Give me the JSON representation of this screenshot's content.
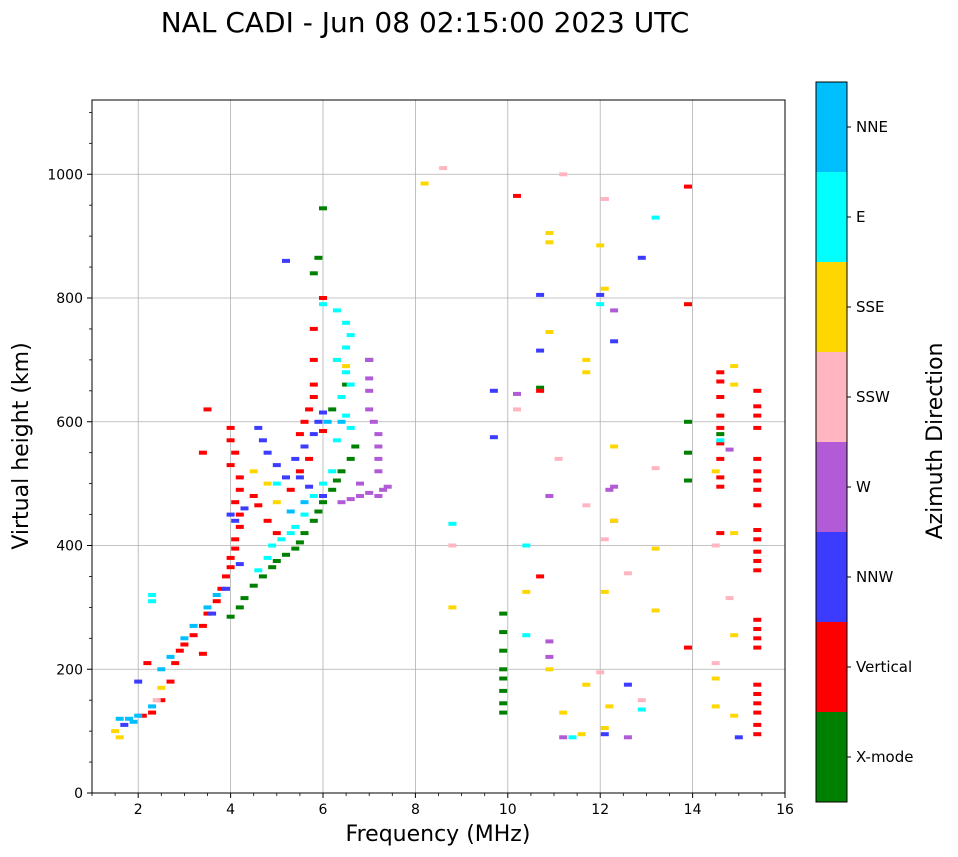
{
  "chart_data": {
    "type": "scatter",
    "title": "NAL CADI - Jun 08 02:15:00 2023 UTC",
    "xlabel": "Frequency (MHz)",
    "ylabel": "Virtual height (km)",
    "xlim": [
      1,
      16
    ],
    "ylim": [
      0,
      1120
    ],
    "x_ticks": [
      2,
      4,
      6,
      8,
      10,
      12,
      14,
      16
    ],
    "y_ticks": [
      0,
      200,
      400,
      600,
      800,
      1000
    ],
    "grid": true,
    "colorbar": {
      "title": "Azimuth Direction",
      "categories": [
        {
          "name": "X-mode",
          "color": "#008000"
        },
        {
          "name": "Vertical",
          "color": "#ff0000"
        },
        {
          "name": "NNW",
          "color": "#3c3cff"
        },
        {
          "name": "W",
          "color": "#b15bd6"
        },
        {
          "name": "SSW",
          "color": "#ffb6c1"
        },
        {
          "name": "SSE",
          "color": "#ffd700"
        },
        {
          "name": "E",
          "color": "#00ffff"
        },
        {
          "name": "NNE",
          "color": "#00bfff"
        }
      ]
    },
    "series": [
      {
        "name": "X-mode",
        "points": [
          [
            4.0,
            285
          ],
          [
            4.2,
            300
          ],
          [
            4.3,
            315
          ],
          [
            4.5,
            335
          ],
          [
            4.7,
            350
          ],
          [
            4.9,
            365
          ],
          [
            5.0,
            375
          ],
          [
            5.2,
            385
          ],
          [
            5.4,
            395
          ],
          [
            5.5,
            405
          ],
          [
            5.6,
            420
          ],
          [
            5.8,
            440
          ],
          [
            5.9,
            455
          ],
          [
            6.0,
            470
          ],
          [
            6.2,
            490
          ],
          [
            6.3,
            505
          ],
          [
            6.4,
            520
          ],
          [
            6.6,
            540
          ],
          [
            6.7,
            560
          ],
          [
            6.2,
            620
          ],
          [
            6.5,
            660
          ],
          [
            7.0,
            700
          ],
          [
            5.9,
            865
          ],
          [
            5.8,
            840
          ],
          [
            6.0,
            945
          ],
          [
            9.9,
            290
          ],
          [
            9.9,
            260
          ],
          [
            9.9,
            230
          ],
          [
            9.9,
            200
          ],
          [
            9.9,
            185
          ],
          [
            9.9,
            165
          ],
          [
            9.9,
            145
          ],
          [
            9.9,
            130
          ],
          [
            10.7,
            655
          ],
          [
            13.9,
            600
          ],
          [
            13.9,
            550
          ],
          [
            13.9,
            505
          ],
          [
            14.6,
            580
          ]
        ]
      },
      {
        "name": "Vertical",
        "points": [
          [
            2.1,
            125
          ],
          [
            2.3,
            130
          ],
          [
            2.5,
            150
          ],
          [
            2.7,
            180
          ],
          [
            2.8,
            210
          ],
          [
            2.9,
            230
          ],
          [
            3.0,
            240
          ],
          [
            3.2,
            255
          ],
          [
            3.4,
            270
          ],
          [
            3.5,
            290
          ],
          [
            3.7,
            310
          ],
          [
            3.8,
            330
          ],
          [
            3.9,
            350
          ],
          [
            4.0,
            365
          ],
          [
            4.0,
            380
          ],
          [
            4.1,
            395
          ],
          [
            4.1,
            410
          ],
          [
            4.2,
            430
          ],
          [
            4.2,
            450
          ],
          [
            4.1,
            470
          ],
          [
            4.2,
            490
          ],
          [
            4.2,
            510
          ],
          [
            4.0,
            530
          ],
          [
            4.1,
            550
          ],
          [
            4.0,
            570
          ],
          [
            4.0,
            590
          ],
          [
            4.5,
            480
          ],
          [
            4.6,
            465
          ],
          [
            4.8,
            440
          ],
          [
            5.0,
            420
          ],
          [
            5.3,
            490
          ],
          [
            5.5,
            520
          ],
          [
            5.7,
            540
          ],
          [
            5.5,
            580
          ],
          [
            5.6,
            600
          ],
          [
            5.7,
            620
          ],
          [
            5.8,
            640
          ],
          [
            5.8,
            660
          ],
          [
            5.8,
            700
          ],
          [
            5.8,
            750
          ],
          [
            6.0,
            800
          ],
          [
            3.4,
            225
          ],
          [
            3.5,
            620
          ],
          [
            3.4,
            550
          ],
          [
            6.0,
            585
          ],
          [
            10.2,
            965
          ],
          [
            10.7,
            650
          ],
          [
            10.7,
            350
          ],
          [
            13.9,
            980
          ],
          [
            13.9,
            790
          ],
          [
            13.9,
            235
          ],
          [
            14.6,
            680
          ],
          [
            14.6,
            665
          ],
          [
            14.6,
            640
          ],
          [
            14.6,
            610
          ],
          [
            14.6,
            590
          ],
          [
            14.6,
            565
          ],
          [
            14.6,
            540
          ],
          [
            14.6,
            510
          ],
          [
            14.6,
            495
          ],
          [
            14.6,
            420
          ],
          [
            15.4,
            650
          ],
          [
            15.4,
            625
          ],
          [
            15.4,
            610
          ],
          [
            15.4,
            590
          ],
          [
            15.4,
            540
          ],
          [
            15.4,
            520
          ],
          [
            15.4,
            505
          ],
          [
            15.4,
            490
          ],
          [
            15.4,
            465
          ],
          [
            15.4,
            425
          ],
          [
            15.4,
            410
          ],
          [
            15.4,
            390
          ],
          [
            15.4,
            375
          ],
          [
            15.4,
            360
          ],
          [
            15.4,
            280
          ],
          [
            15.4,
            265
          ],
          [
            15.4,
            250
          ],
          [
            15.4,
            235
          ],
          [
            15.4,
            175
          ],
          [
            15.4,
            160
          ],
          [
            15.4,
            145
          ],
          [
            15.4,
            130
          ],
          [
            15.4,
            110
          ],
          [
            15.4,
            95
          ],
          [
            2.2,
            210
          ]
        ]
      },
      {
        "name": "NNW",
        "points": [
          [
            4.0,
            450
          ],
          [
            4.1,
            440
          ],
          [
            4.3,
            460
          ],
          [
            4.6,
            590
          ],
          [
            4.7,
            570
          ],
          [
            4.8,
            550
          ],
          [
            5.0,
            530
          ],
          [
            5.2,
            510
          ],
          [
            5.4,
            540
          ],
          [
            5.6,
            560
          ],
          [
            5.8,
            580
          ],
          [
            5.9,
            600
          ],
          [
            6.0,
            615
          ],
          [
            5.5,
            510
          ],
          [
            5.7,
            495
          ],
          [
            6.0,
            480
          ],
          [
            3.9,
            330
          ],
          [
            4.2,
            370
          ],
          [
            3.6,
            290
          ],
          [
            5.2,
            860
          ],
          [
            9.7,
            650
          ],
          [
            9.7,
            575
          ],
          [
            10.7,
            805
          ],
          [
            10.7,
            715
          ],
          [
            12.0,
            805
          ],
          [
            12.3,
            730
          ],
          [
            12.9,
            865
          ],
          [
            12.6,
            175
          ],
          [
            12.1,
            95
          ],
          [
            15.0,
            90
          ],
          [
            2.0,
            180
          ],
          [
            1.7,
            110
          ]
        ]
      },
      {
        "name": "W",
        "points": [
          [
            6.4,
            470
          ],
          [
            6.6,
            475
          ],
          [
            6.8,
            480
          ],
          [
            7.0,
            485
          ],
          [
            7.2,
            480
          ],
          [
            7.3,
            490
          ],
          [
            7.4,
            495
          ],
          [
            7.2,
            520
          ],
          [
            7.2,
            540
          ],
          [
            7.2,
            560
          ],
          [
            7.2,
            580
          ],
          [
            7.1,
            600
          ],
          [
            7.0,
            620
          ],
          [
            7.0,
            650
          ],
          [
            7.0,
            670
          ],
          [
            7.0,
            700
          ],
          [
            6.8,
            500
          ],
          [
            10.2,
            645
          ],
          [
            10.9,
            480
          ],
          [
            10.9,
            245
          ],
          [
            10.9,
            220
          ],
          [
            11.2,
            90
          ],
          [
            12.3,
            440
          ],
          [
            12.3,
            495
          ],
          [
            12.3,
            780
          ],
          [
            12.6,
            90
          ],
          [
            14.8,
            555
          ],
          [
            12.2,
            490
          ]
        ]
      },
      {
        "name": "SSW",
        "points": [
          [
            8.6,
            1010
          ],
          [
            11.2,
            1000
          ],
          [
            12.1,
            960
          ],
          [
            12.1,
            960
          ],
          [
            11.1,
            540
          ],
          [
            11.7,
            465
          ],
          [
            12.1,
            410
          ],
          [
            12.6,
            355
          ],
          [
            12.9,
            150
          ],
          [
            13.2,
            525
          ],
          [
            14.5,
            400
          ],
          [
            14.5,
            210
          ],
          [
            14.8,
            315
          ],
          [
            12.0,
            195
          ],
          [
            8.8,
            400
          ],
          [
            10.2,
            620
          ],
          [
            2.4,
            150
          ]
        ]
      },
      {
        "name": "SSE",
        "points": [
          [
            8.2,
            985
          ],
          [
            10.9,
            905
          ],
          [
            10.9,
            890
          ],
          [
            12.0,
            885
          ],
          [
            12.1,
            815
          ],
          [
            12.3,
            560
          ],
          [
            12.3,
            440
          ],
          [
            12.1,
            325
          ],
          [
            13.2,
            395
          ],
          [
            13.2,
            295
          ],
          [
            8.8,
            300
          ],
          [
            10.4,
            325
          ],
          [
            10.9,
            200
          ],
          [
            11.7,
            175
          ],
          [
            11.2,
            130
          ],
          [
            11.6,
            95
          ],
          [
            12.1,
            105
          ],
          [
            12.2,
            140
          ],
          [
            14.9,
            690
          ],
          [
            14.9,
            660
          ],
          [
            14.5,
            520
          ],
          [
            14.5,
            185
          ],
          [
            14.5,
            140
          ],
          [
            14.9,
            125
          ],
          [
            14.9,
            420
          ],
          [
            14.9,
            255
          ],
          [
            10.9,
            745
          ],
          [
            11.7,
            700
          ],
          [
            11.7,
            680
          ],
          [
            4.5,
            520
          ],
          [
            4.8,
            500
          ],
          [
            5.0,
            470
          ],
          [
            6.3,
            700
          ],
          [
            6.5,
            690
          ],
          [
            2.5,
            170
          ],
          [
            1.5,
            100
          ],
          [
            1.6,
            90
          ]
        ]
      },
      {
        "name": "E",
        "points": [
          [
            6.0,
            790
          ],
          [
            6.3,
            780
          ],
          [
            6.5,
            760
          ],
          [
            6.6,
            740
          ],
          [
            6.5,
            720
          ],
          [
            6.3,
            700
          ],
          [
            6.5,
            680
          ],
          [
            6.6,
            660
          ],
          [
            6.4,
            640
          ],
          [
            6.5,
            610
          ],
          [
            6.6,
            590
          ],
          [
            6.3,
            570
          ],
          [
            6.2,
            520
          ],
          [
            6.0,
            500
          ],
          [
            5.8,
            480
          ],
          [
            5.6,
            450
          ],
          [
            5.4,
            430
          ],
          [
            5.3,
            420
          ],
          [
            5.1,
            410
          ],
          [
            4.9,
            400
          ],
          [
            4.8,
            380
          ],
          [
            4.6,
            360
          ],
          [
            2.3,
            320
          ],
          [
            2.3,
            310
          ],
          [
            13.2,
            930
          ],
          [
            12.0,
            790
          ],
          [
            12.9,
            135
          ],
          [
            11.4,
            90
          ],
          [
            10.4,
            255
          ],
          [
            10.4,
            400
          ],
          [
            8.8,
            435
          ],
          [
            14.6,
            570
          ],
          [
            5.0,
            500
          ]
        ]
      },
      {
        "name": "NNE",
        "points": [
          [
            1.6,
            120
          ],
          [
            1.8,
            120
          ],
          [
            1.9,
            115
          ],
          [
            2.0,
            125
          ],
          [
            2.3,
            140
          ],
          [
            2.5,
            200
          ],
          [
            2.7,
            220
          ],
          [
            3.0,
            250
          ],
          [
            3.2,
            270
          ],
          [
            3.5,
            300
          ],
          [
            3.7,
            320
          ],
          [
            5.3,
            455
          ],
          [
            5.6,
            470
          ],
          [
            6.1,
            600
          ],
          [
            6.4,
            600
          ]
        ]
      }
    ]
  }
}
